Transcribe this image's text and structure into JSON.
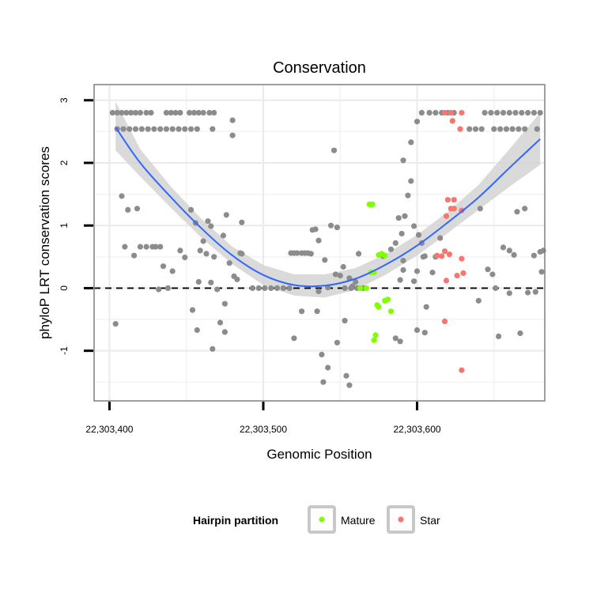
{
  "chart_data": {
    "type": "scatter",
    "title": "Conservation",
    "xlabel": "Genomic Position",
    "ylabel": "phyloP LRT conservation scores",
    "xlim": [
      22303390,
      22303683
    ],
    "ylim": [
      -1.8,
      3.25
    ],
    "x_ticks": [
      {
        "value": 22303400,
        "label": "22,303,400"
      },
      {
        "value": 22303500,
        "label": "22,303,500"
      },
      {
        "value": 22303600,
        "label": "22,303,600"
      }
    ],
    "y_ticks": [
      {
        "value": -1,
        "label": "-1"
      },
      {
        "value": 0,
        "label": "0"
      },
      {
        "value": 1,
        "label": "1"
      },
      {
        "value": 2,
        "label": "2"
      },
      {
        "value": 3,
        "label": "3"
      }
    ],
    "reference_line": {
      "y": 0,
      "style": "dashed"
    },
    "legend": {
      "title": "Hairpin partition",
      "placement": "bottom",
      "entries": [
        {
          "label": "Mature",
          "color": "#7FFF00"
        },
        {
          "label": "Star",
          "color": "#F8766D"
        }
      ]
    },
    "colors": {
      "other": "#8c8c8c",
      "Mature": "#7FFF00",
      "Star": "#F8766D",
      "smooth": "#3366FF",
      "band": "#d3d3d3"
    },
    "smooth": {
      "x": [
        22303404,
        22303420,
        22303440,
        22303460,
        22303480,
        22303500,
        22303520,
        22303540,
        22303560,
        22303580,
        22303600,
        22303620,
        22303640,
        22303660,
        22303680
      ],
      "y": [
        2.57,
        2.0,
        1.45,
        0.95,
        0.52,
        0.21,
        0.05,
        0.04,
        0.15,
        0.38,
        0.68,
        1.05,
        1.45,
        1.92,
        2.38
      ],
      "lower": [
        2.2,
        1.78,
        1.28,
        0.8,
        0.38,
        0.05,
        -0.12,
        -0.15,
        -0.03,
        0.22,
        0.52,
        0.88,
        1.25,
        1.62,
        1.97
      ],
      "upper": [
        2.98,
        2.22,
        1.62,
        1.1,
        0.66,
        0.37,
        0.22,
        0.22,
        0.32,
        0.55,
        0.85,
        1.22,
        1.65,
        2.22,
        2.8
      ]
    },
    "series": [
      {
        "name": "Other",
        "points": [
          [
            22303402,
            2.8
          ],
          [
            22303405,
            2.8
          ],
          [
            22303408,
            2.8
          ],
          [
            22303411,
            2.8
          ],
          [
            22303414,
            2.8
          ],
          [
            22303417,
            2.8
          ],
          [
            22303420,
            2.8
          ],
          [
            22303424,
            2.8
          ],
          [
            22303427,
            2.8
          ],
          [
            22303437,
            2.8
          ],
          [
            22303440,
            2.8
          ],
          [
            22303443,
            2.8
          ],
          [
            22303446,
            2.8
          ],
          [
            22303452,
            2.8
          ],
          [
            22303455,
            2.8
          ],
          [
            22303458,
            2.8
          ],
          [
            22303461,
            2.8
          ],
          [
            22303465,
            2.8
          ],
          [
            22303468,
            2.8
          ],
          [
            22303405,
            2.54
          ],
          [
            22303409,
            2.54
          ],
          [
            22303413,
            2.54
          ],
          [
            22303417,
            2.54
          ],
          [
            22303421,
            2.54
          ],
          [
            22303425,
            2.54
          ],
          [
            22303429,
            2.54
          ],
          [
            22303433,
            2.54
          ],
          [
            22303437,
            2.54
          ],
          [
            22303441,
            2.54
          ],
          [
            22303445,
            2.54
          ],
          [
            22303449,
            2.54
          ],
          [
            22303453,
            2.54
          ],
          [
            22303457,
            2.54
          ],
          [
            22303467,
            2.54
          ],
          [
            22303480,
            2.68
          ],
          [
            22303480,
            2.44
          ],
          [
            22303603,
            2.8
          ],
          [
            22303608,
            2.8
          ],
          [
            22303612,
            2.8
          ],
          [
            22303616,
            2.8
          ],
          [
            22303620,
            2.8
          ],
          [
            22303624,
            2.8
          ],
          [
            22303644,
            2.8
          ],
          [
            22303648,
            2.8
          ],
          [
            22303652,
            2.8
          ],
          [
            22303656,
            2.8
          ],
          [
            22303660,
            2.8
          ],
          [
            22303664,
            2.8
          ],
          [
            22303668,
            2.8
          ],
          [
            22303672,
            2.8
          ],
          [
            22303676,
            2.8
          ],
          [
            22303680,
            2.8
          ],
          [
            22303634,
            2.54
          ],
          [
            22303638,
            2.54
          ],
          [
            22303642,
            2.54
          ],
          [
            22303650,
            2.54
          ],
          [
            22303654,
            2.54
          ],
          [
            22303658,
            2.54
          ],
          [
            22303662,
            2.54
          ],
          [
            22303666,
            2.54
          ],
          [
            22303670,
            2.54
          ],
          [
            22303678,
            2.54
          ],
          [
            22303600,
            2.66
          ],
          [
            22303596,
            2.33
          ],
          [
            22303591,
            2.04
          ],
          [
            22303546,
            2.2
          ],
          [
            22303408,
            1.47
          ],
          [
            22303412,
            1.25
          ],
          [
            22303418,
            1.27
          ],
          [
            22303410,
            0.66
          ],
          [
            22303416,
            0.52
          ],
          [
            22303420,
            0.66
          ],
          [
            22303424,
            0.66
          ],
          [
            22303428,
            0.66
          ],
          [
            22303430,
            0.66
          ],
          [
            22303433,
            0.66
          ],
          [
            22303435,
            0.35
          ],
          [
            22303441,
            0.27
          ],
          [
            22303432,
            -0.02
          ],
          [
            22303438,
            0.0
          ],
          [
            22303404,
            -0.57
          ],
          [
            22303446,
            0.6
          ],
          [
            22303449,
            0.49
          ],
          [
            22303453,
            1.25
          ],
          [
            22303456,
            1.04
          ],
          [
            22303459,
            0.6
          ],
          [
            22303461,
            0.75
          ],
          [
            22303464,
            1.07
          ],
          [
            22303466,
            0.99
          ],
          [
            22303468,
            0.5
          ],
          [
            22303474,
            0.84
          ],
          [
            22303476,
            1.17
          ],
          [
            22303458,
            0.1
          ],
          [
            22303463,
            0.55
          ],
          [
            22303454,
            -0.35
          ],
          [
            22303457,
            -0.67
          ],
          [
            22303466,
            0.09
          ],
          [
            22303470,
            -0.02
          ],
          [
            22303475,
            -0.25
          ],
          [
            22303478,
            0.4
          ],
          [
            22303481,
            0.19
          ],
          [
            22303483,
            0.14
          ],
          [
            22303485,
            0.56
          ],
          [
            22303472,
            -0.55
          ],
          [
            22303475,
            -0.7
          ],
          [
            22303467,
            -0.97
          ],
          [
            22303486,
            1.05
          ],
          [
            22303486,
            0.55
          ],
          [
            22303493,
            0.0
          ],
          [
            22303497,
            0.0
          ],
          [
            22303501,
            0.0
          ],
          [
            22303505,
            0.0
          ],
          [
            22303509,
            0.0
          ],
          [
            22303513,
            0.0
          ],
          [
            22303517,
            0.0
          ],
          [
            22303553,
            0.0
          ],
          [
            22303557,
            0.0
          ],
          [
            22303561,
            0.0
          ],
          [
            22303565,
            0.0
          ],
          [
            22303518,
            0.56
          ],
          [
            22303520,
            0.56
          ],
          [
            22303522,
            0.56
          ],
          [
            22303525,
            0.56
          ],
          [
            22303527,
            0.56
          ],
          [
            22303529,
            0.56
          ],
          [
            22303531,
            0.55
          ],
          [
            22303532,
            0.93
          ],
          [
            22303534,
            0.94
          ],
          [
            22303536,
            0.76
          ],
          [
            22303540,
            0.45
          ],
          [
            22303544,
            1.0
          ],
          [
            22303548,
            0.97
          ],
          [
            22303550,
            0.2
          ],
          [
            22303552,
            0.34
          ],
          [
            22303556,
            0.16
          ],
          [
            22303560,
            0.1
          ],
          [
            22303562,
            0.55
          ],
          [
            22303542,
            0.01
          ],
          [
            22303536,
            -0.05
          ],
          [
            22303520,
            -0.8
          ],
          [
            22303525,
            -0.37
          ],
          [
            22303535,
            -0.37
          ],
          [
            22303538,
            -1.06
          ],
          [
            22303539,
            -1.5
          ],
          [
            22303542,
            -1.27
          ],
          [
            22303548,
            -0.87
          ],
          [
            22303553,
            -0.52
          ],
          [
            22303554,
            -1.4
          ],
          [
            22303556,
            -1.55
          ],
          [
            22303547,
            0.22
          ],
          [
            22303558,
            0.03
          ],
          [
            22303578,
            0.51
          ],
          [
            22303583,
            0.62
          ],
          [
            22303586,
            0.72
          ],
          [
            22303588,
            1.12
          ],
          [
            22303590,
            0.87
          ],
          [
            22303592,
            1.15
          ],
          [
            22303594,
            1.48
          ],
          [
            22303598,
            0.99
          ],
          [
            22303601,
            0.85
          ],
          [
            22303603,
            0.72
          ],
          [
            22303605,
            0.51
          ],
          [
            22303591,
            0.29
          ],
          [
            22303589,
            0.13
          ],
          [
            22303598,
            0.11
          ],
          [
            22303591,
            0.44
          ],
          [
            22303600,
            0.27
          ],
          [
            22303600,
            -0.67
          ],
          [
            22303605,
            -0.71
          ],
          [
            22303586,
            -0.8
          ],
          [
            22303589,
            -0.85
          ],
          [
            22303596,
            1.71
          ],
          [
            22303610,
            0.25
          ],
          [
            22303615,
            0.8
          ],
          [
            22303612,
            0.5
          ],
          [
            22303604,
            0.5
          ],
          [
            22303646,
            0.3
          ],
          [
            22303649,
            0.22
          ],
          [
            22303651,
            0.0
          ],
          [
            22303653,
            -0.77
          ],
          [
            22303656,
            0.65
          ],
          [
            22303660,
            0.6
          ],
          [
            22303663,
            0.53
          ],
          [
            22303665,
            1.22
          ],
          [
            22303670,
            1.27
          ],
          [
            22303676,
            0.52
          ],
          [
            22303680,
            0.58
          ],
          [
            22303682,
            0.6
          ],
          [
            22303681,
            0.26
          ],
          [
            22303667,
            -0.72
          ],
          [
            22303672,
            -0.07
          ],
          [
            22303677,
            -0.06
          ],
          [
            22303660,
            -0.08
          ],
          [
            22303640,
            -0.2
          ],
          [
            22303641,
            1.27
          ],
          [
            22303606,
            -0.3
          ]
        ]
      },
      {
        "name": "Mature",
        "points": [
          [
            22303569,
            1.34
          ],
          [
            22303570,
            1.33
          ],
          [
            22303571,
            1.34
          ],
          [
            22303575,
            0.53
          ],
          [
            22303577,
            0.55
          ],
          [
            22303579,
            0.52
          ],
          [
            22303570,
            0.25
          ],
          [
            22303572,
            0.25
          ],
          [
            22303567,
            0.0
          ],
          [
            22303563,
            0.0
          ],
          [
            22303574,
            -0.27
          ],
          [
            22303575,
            -0.3
          ],
          [
            22303579,
            -0.2
          ],
          [
            22303581,
            -0.18
          ],
          [
            22303583,
            -0.37
          ],
          [
            22303573,
            -0.75
          ],
          [
            22303572,
            -0.83
          ]
        ]
      },
      {
        "name": "Star",
        "points": [
          [
            22303618,
            2.8
          ],
          [
            22303622,
            2.8
          ],
          [
            22303623,
            2.67
          ],
          [
            22303629,
            2.8
          ],
          [
            22303628,
            2.54
          ],
          [
            22303620,
            1.41
          ],
          [
            22303624,
            1.41
          ],
          [
            22303622,
            1.27
          ],
          [
            22303624,
            1.27
          ],
          [
            22303619,
            1.15
          ],
          [
            22303629,
            1.24
          ],
          [
            22303618,
            0.59
          ],
          [
            22303621,
            0.54
          ],
          [
            22303613,
            0.52
          ],
          [
            22303616,
            0.51
          ],
          [
            22303626,
            0.2
          ],
          [
            22303629,
            0.47
          ],
          [
            22303630,
            0.24
          ],
          [
            22303619,
            0.12
          ],
          [
            22303618,
            -0.53
          ],
          [
            22303629,
            -1.31
          ]
        ]
      }
    ]
  }
}
